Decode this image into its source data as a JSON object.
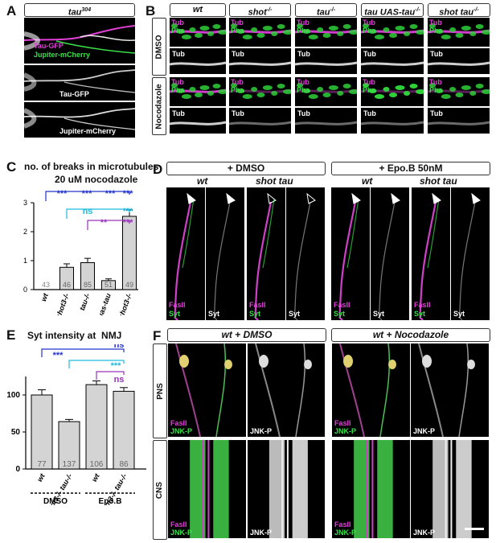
{
  "panels": {
    "A": {
      "label": "A",
      "header": "tau",
      "header_sup": "304",
      "images": [
        {
          "lines": [
            {
              "text": "Tau-GFP",
              "color": "magenta"
            },
            {
              "text": "Jupiter-mCherry",
              "color": "green"
            }
          ]
        },
        {
          "lines": [
            {
              "text": "Tau-GFP",
              "color": "white"
            }
          ]
        },
        {
          "lines": [
            {
              "text": "Jupiter-mCherry",
              "color": "white"
            }
          ]
        }
      ]
    },
    "B": {
      "label": "B",
      "columns": [
        "wt",
        "shot",
        "tau",
        "tau UAS-tau",
        "shot tau"
      ],
      "column_sups": [
        "",
        "-/-",
        "-/-",
        "-/-",
        "-/-"
      ],
      "rows": [
        "DMSO",
        "Nocodazole"
      ],
      "tub": "Tub",
      "pha": "Pha"
    },
    "C": {
      "label": "C",
      "title_line1": "no. of breaks in microtubules",
      "title_line2": "20 uM nocodazole",
      "sig": [
        "***",
        "***",
        "***",
        "***",
        "ns",
        "***",
        "**",
        "***"
      ]
    },
    "D": {
      "label": "D",
      "header_left": "+ DMSO",
      "header_right": "+ Epo.B 50nM",
      "genotypes": [
        "wt",
        "shot tau",
        "wt",
        "shot tau"
      ],
      "fasll": "FasII",
      "syt": "Syt"
    },
    "E": {
      "label": "E",
      "title": "Syt intensity at  NMJ",
      "sig": [
        "***",
        "ns",
        "***",
        "ns"
      ],
      "groups": [
        "DMSO",
        "Epo.B"
      ]
    },
    "F": {
      "label": "F",
      "header_left": "wt + DMSO",
      "header_right": "wt + Nocodazole",
      "rows": [
        "PNS",
        "CNS"
      ],
      "fasll": "FasII",
      "jnk": "JNK-P"
    }
  },
  "chart_data": [
    {
      "type": "bar",
      "panel": "C",
      "title": "no. of breaks in microtubules 20 uM nocodazole",
      "categories": [
        "wt",
        "shot3-/-",
        "tau-/-",
        "tau-/- uas-tau",
        "tau-/- shot3-/-"
      ],
      "values": [
        0.0,
        0.77,
        0.93,
        0.31,
        2.53
      ],
      "errors": [
        0.0,
        0.12,
        0.15,
        0.06,
        0.22
      ],
      "n": [
        "43",
        "46",
        "85",
        "51",
        "49"
      ],
      "ylim": [
        0,
        3
      ],
      "yticks": [
        "0",
        "1",
        "2",
        "3"
      ]
    },
    {
      "type": "bar",
      "panel": "E",
      "title": "Syt intensity at  NMJ",
      "categories": [
        "wt",
        "shot3-/- tau-/-",
        "wt",
        "shot3-/- tau-/-"
      ],
      "values": [
        100,
        64,
        114,
        105
      ],
      "errors": [
        7,
        3,
        5,
        5
      ],
      "n": [
        "77",
        "137",
        "106",
        "86"
      ],
      "ylim": [
        0,
        125
      ],
      "yticks": [
        "0",
        "50",
        "100"
      ]
    }
  ]
}
